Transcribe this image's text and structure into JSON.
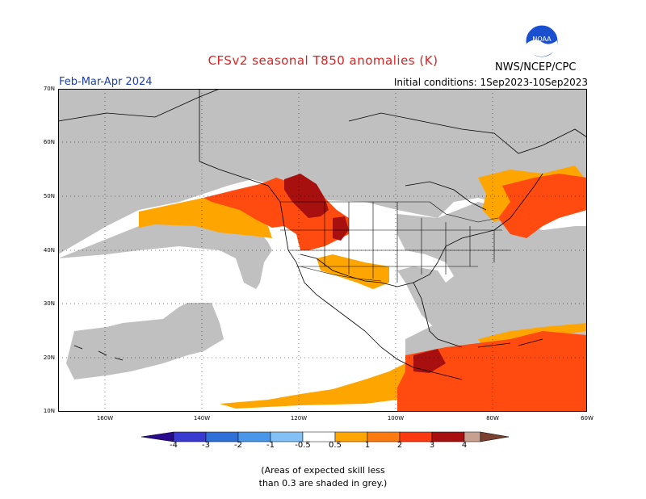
{
  "title": "CFSv2 seasonal T850 anomalies (K)",
  "season": "Feb-Mar-Apr 2024",
  "initial_conditions": "Initial conditions: 1Sep2023-10Sep2023",
  "agency": "NWS/NCEP/CPC",
  "logo_text": "NOAA",
  "lat_labels": [
    "70N",
    "60N",
    "50N",
    "40N",
    "30N",
    "20N",
    "10N"
  ],
  "lon_labels": [
    "160W",
    "140W",
    "120W",
    "100W",
    "80W",
    "60W"
  ],
  "colorbar": {
    "ticks": [
      "-4",
      "-3",
      "-2",
      "-1",
      "-0.5",
      "0.5",
      "1",
      "2",
      "3",
      "4"
    ],
    "colors": [
      "#2a0a8c",
      "#3a3ad0",
      "#2f6fd8",
      "#4a96e8",
      "#82c0f5",
      "#ffffff",
      "#ffa500",
      "#ff7a10",
      "#ff3a10",
      "#a81010",
      "#c8a090",
      "#7a4030"
    ]
  },
  "note_line1": "(Areas of expected skill less",
  "note_line2": "than 0.3 are shaded in grey.)",
  "map_colors": {
    "grey": "#c0c0c0",
    "orange": "#ffa500",
    "redorange": "#ff4a10",
    "darkred": "#a81010",
    "white": "#ffffff"
  }
}
